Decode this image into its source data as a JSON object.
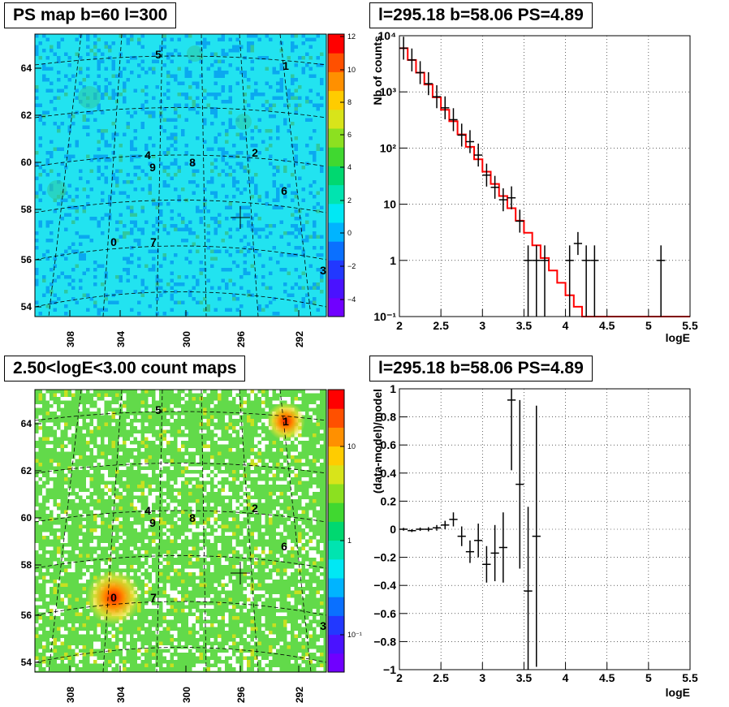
{
  "panels": {
    "map1_title": "PS map b=60 l=300",
    "map2_title": "2.50<logE<3.00 count maps",
    "spec_title": "l=295.18 b=58.06 PS=4.89",
    "resid_title": "l=295.18 b=58.06 PS=4.89"
  },
  "map_axes": {
    "x_ticks": [
      "308",
      "304",
      "300",
      "296",
      "292"
    ],
    "y_ticks": [
      "64",
      "62",
      "60",
      "58",
      "56",
      "54"
    ]
  },
  "source_labels": [
    "0",
    "1",
    "2",
    "3",
    "4",
    "5",
    "6",
    "7",
    "8",
    "9"
  ],
  "colorbar_ps": {
    "ticks": [
      "12",
      "10",
      "8",
      "6",
      "4",
      "2",
      "0",
      "−2",
      "−4"
    ],
    "colors": [
      "#7000ff",
      "#4a12ff",
      "#2238ff",
      "#0a70ff",
      "#00b4ff",
      "#00e8f4",
      "#00e4b0",
      "#00d870",
      "#40d830",
      "#8ce020",
      "#d8e41a",
      "#ffcc00",
      "#ff9000",
      "#ff5000",
      "#ff0000"
    ]
  },
  "colorbar_counts": {
    "ticks": [
      "10",
      "1",
      "10⁻¹"
    ]
  },
  "colors": {
    "map1_bg": "#22e3f0",
    "map2_bg": "#62da4a",
    "model": "#ff0000",
    "data": "#000000"
  },
  "chart_data": [
    {
      "type": "line",
      "title": "l=295.18 b=58.06 PS=4.89",
      "xlabel": "logE",
      "ylabel": "Nb of counts",
      "log_y": true,
      "xlim": [
        2,
        5.5
      ],
      "ylim": [
        0.1,
        10000
      ],
      "grid": true,
      "x_ticks": [
        "2",
        "2.5",
        "3",
        "3.5",
        "4",
        "4.5",
        "5",
        "5.5"
      ],
      "y_ticks": [
        "10⁻¹",
        "1",
        "10",
        "10²",
        "10³",
        "10⁴"
      ],
      "model_step": [
        [
          2.0,
          6000
        ],
        [
          2.1,
          3700
        ],
        [
          2.2,
          2200
        ],
        [
          2.3,
          1350
        ],
        [
          2.4,
          800
        ],
        [
          2.5,
          480
        ],
        [
          2.6,
          300
        ],
        [
          2.7,
          175
        ],
        [
          2.8,
          105
        ],
        [
          2.9,
          63
        ],
        [
          3.0,
          38
        ],
        [
          3.1,
          23
        ],
        [
          3.2,
          14
        ],
        [
          3.3,
          8.5
        ],
        [
          3.4,
          5.1
        ],
        [
          3.5,
          3.1
        ],
        [
          3.6,
          1.85
        ],
        [
          3.7,
          1.1
        ],
        [
          3.8,
          0.66
        ],
        [
          3.9,
          0.4
        ],
        [
          4.0,
          0.24
        ],
        [
          4.1,
          0.15
        ],
        [
          4.2,
          0.1
        ],
        [
          5.5,
          0.1
        ]
      ],
      "data": [
        {
          "x": 2.05,
          "y": 6000
        },
        {
          "x": 2.15,
          "y": 3700
        },
        {
          "x": 2.25,
          "y": 2200
        },
        {
          "x": 2.35,
          "y": 1400
        },
        {
          "x": 2.45,
          "y": 820
        },
        {
          "x": 2.55,
          "y": 520
        },
        {
          "x": 2.65,
          "y": 320
        },
        {
          "x": 2.75,
          "y": 170
        },
        {
          "x": 2.85,
          "y": 130
        },
        {
          "x": 2.95,
          "y": 75
        },
        {
          "x": 3.05,
          "y": 33
        },
        {
          "x": 3.15,
          "y": 20
        },
        {
          "x": 3.25,
          "y": 12
        },
        {
          "x": 3.35,
          "y": 13
        },
        {
          "x": 3.45,
          "y": 5
        },
        {
          "x": 3.55,
          "y": 1
        },
        {
          "x": 3.65,
          "y": 1
        },
        {
          "x": 3.75,
          "y": 1
        },
        {
          "x": 4.05,
          "y": 1
        },
        {
          "x": 4.15,
          "y": 2
        },
        {
          "x": 4.25,
          "y": 1
        },
        {
          "x": 4.35,
          "y": 1
        },
        {
          "x": 5.15,
          "y": 1
        }
      ]
    },
    {
      "type": "scatter",
      "title": "l=295.18 b=58.06 PS=4.89",
      "xlabel": "logE",
      "ylabel": "(data-model)/model",
      "xlim": [
        2,
        5.5
      ],
      "ylim": [
        -1,
        1
      ],
      "grid": true,
      "x_ticks": [
        "2",
        "2.5",
        "3",
        "3.5",
        "4",
        "4.5",
        "5",
        "5.5"
      ],
      "y_ticks": [
        "1",
        "0.8",
        "0.6",
        "0.4",
        "0.2",
        "0",
        "−0.2",
        "−0.4",
        "−0.6",
        "−0.8",
        "−1"
      ],
      "data": [
        {
          "x": 2.05,
          "y": 0.0,
          "err": 0.01
        },
        {
          "x": 2.15,
          "y": -0.01,
          "err": 0.01
        },
        {
          "x": 2.25,
          "y": 0.0,
          "err": 0.012
        },
        {
          "x": 2.35,
          "y": 0.0,
          "err": 0.015
        },
        {
          "x": 2.45,
          "y": 0.01,
          "err": 0.02
        },
        {
          "x": 2.55,
          "y": 0.03,
          "err": 0.03
        },
        {
          "x": 2.65,
          "y": 0.07,
          "err": 0.05
        },
        {
          "x": 2.75,
          "y": -0.05,
          "err": 0.07
        },
        {
          "x": 2.85,
          "y": -0.16,
          "err": 0.08
        },
        {
          "x": 2.95,
          "y": -0.08,
          "err": 0.12
        },
        {
          "x": 3.05,
          "y": -0.25,
          "err": 0.13
        },
        {
          "x": 3.15,
          "y": -0.17,
          "err": 0.2
        },
        {
          "x": 3.25,
          "y": -0.13,
          "err": 0.25
        },
        {
          "x": 3.35,
          "y": 0.92,
          "err": 0.5
        },
        {
          "x": 3.45,
          "y": 0.32,
          "err": 0.6
        },
        {
          "x": 3.55,
          "y": -0.44,
          "err": 0.6
        },
        {
          "x": 3.65,
          "y": -0.05,
          "err": 0.93
        }
      ]
    }
  ]
}
